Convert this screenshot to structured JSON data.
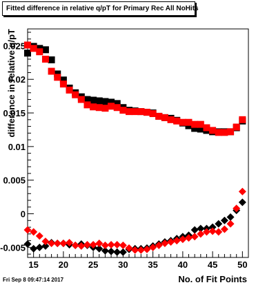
{
  "chart_data": {
    "type": "scatter",
    "title": "Fitted difference in relative q/pT for Primary Rec All NoHits",
    "xlabel": "No. of Fit Points",
    "ylabel": "difference in relative q/pT",
    "xlim": [
      14,
      51
    ],
    "ylim": [
      -0.0065,
      0.0275
    ],
    "x_ticks": [
      15,
      20,
      25,
      30,
      35,
      40,
      45,
      50
    ],
    "y_ticks": [
      {
        "value": -0.005,
        "label": "-0.005"
      },
      {
        "value": 0,
        "label": "0"
      },
      {
        "value": 0.005,
        "label": "0.005"
      },
      {
        "value": 0.01,
        "label": "0.01"
      },
      {
        "value": 0.015,
        "label": "0.015"
      },
      {
        "value": 0.02,
        "label": "0.02"
      },
      {
        "value": 0.025,
        "label": "0.025"
      }
    ],
    "series": [
      {
        "marker": "square",
        "color": "#000000",
        "x": [
          14,
          15,
          16,
          17,
          18,
          19,
          20,
          21,
          22,
          23,
          24,
          25,
          26,
          27,
          28,
          29,
          30,
          31,
          32,
          33,
          34,
          35,
          36,
          37,
          38,
          39,
          40,
          41,
          42,
          43,
          44,
          45,
          46,
          47,
          48,
          49,
          50
        ],
        "y": [
          0.0239,
          0.0249,
          0.0246,
          0.0244,
          0.0229,
          0.0208,
          0.0199,
          0.0187,
          0.018,
          0.0174,
          0.017,
          0.0169,
          0.0168,
          0.0167,
          0.0166,
          0.0164,
          0.0158,
          0.0154,
          0.0153,
          0.0152,
          0.0151,
          0.015,
          0.0145,
          0.0143,
          0.0142,
          0.0139,
          0.0135,
          0.0131,
          0.0127,
          0.0126,
          0.0124,
          0.0122,
          0.0122,
          0.0122,
          0.0122,
          0.0128,
          0.0138
        ]
      },
      {
        "marker": "square",
        "color": "#ff0000",
        "x": [
          14,
          15,
          16,
          17,
          18,
          19,
          20,
          21,
          22,
          23,
          24,
          25,
          26,
          27,
          28,
          29,
          30,
          31,
          32,
          33,
          34,
          35,
          36,
          37,
          38,
          39,
          40,
          41,
          42,
          43,
          44,
          45,
          46,
          47,
          48,
          49,
          50
        ],
        "y": [
          0.0251,
          0.0246,
          0.0241,
          0.023,
          0.0212,
          0.0203,
          0.0193,
          0.0184,
          0.0177,
          0.017,
          0.0162,
          0.0159,
          0.0158,
          0.0157,
          0.016,
          0.0158,
          0.0154,
          0.0152,
          0.0152,
          0.0152,
          0.0151,
          0.0149,
          0.0145,
          0.0143,
          0.014,
          0.0138,
          0.0136,
          0.0136,
          0.0133,
          0.0133,
          0.0128,
          0.0124,
          0.0121,
          0.0121,
          0.0122,
          0.0129,
          0.014
        ]
      },
      {
        "marker": "diamond",
        "color": "#000000",
        "x": [
          14,
          15,
          16,
          17,
          18,
          19,
          20,
          21,
          22,
          23,
          24,
          25,
          26,
          27,
          28,
          29,
          30,
          31,
          32,
          33,
          34,
          35,
          36,
          37,
          38,
          39,
          40,
          41,
          42,
          43,
          44,
          45,
          46,
          47,
          48,
          49,
          50
        ],
        "y": [
          -0.0045,
          -0.0052,
          -0.005,
          -0.0048,
          -0.0043,
          -0.0044,
          -0.0044,
          -0.0046,
          -0.0047,
          -0.0045,
          -0.0047,
          -0.005,
          -0.0052,
          -0.0055,
          -0.0056,
          -0.0057,
          -0.0057,
          -0.0053,
          -0.0052,
          -0.0052,
          -0.0051,
          -0.0048,
          -0.0045,
          -0.0042,
          -0.004,
          -0.0037,
          -0.0034,
          -0.0032,
          -0.0024,
          -0.0022,
          -0.0022,
          -0.002,
          -0.0015,
          -0.001,
          -0.0005,
          0.0005,
          0.0017
        ]
      },
      {
        "marker": "diamond",
        "color": "#ff0000",
        "x": [
          14,
          15,
          16,
          17,
          18,
          19,
          20,
          21,
          22,
          23,
          24,
          25,
          26,
          27,
          28,
          29,
          30,
          31,
          32,
          33,
          34,
          35,
          36,
          37,
          38,
          39,
          40,
          41,
          42,
          43,
          44,
          45,
          46,
          47,
          48,
          49,
          50
        ],
        "y": [
          -0.0024,
          -0.0027,
          -0.0033,
          -0.0041,
          -0.0044,
          -0.0044,
          -0.0044,
          -0.0043,
          -0.0047,
          -0.0048,
          -0.0046,
          -0.0046,
          -0.0044,
          -0.0047,
          -0.0046,
          -0.0046,
          -0.0047,
          -0.0051,
          -0.0054,
          -0.0054,
          -0.0053,
          -0.005,
          -0.0047,
          -0.0044,
          -0.0042,
          -0.004,
          -0.0038,
          -0.0036,
          -0.0034,
          -0.003,
          -0.0027,
          -0.0026,
          -0.0027,
          -0.0023,
          -0.0015,
          0.0008,
          0.0033
        ]
      }
    ]
  },
  "footer": {
    "timestamp": "Fri Sep  8 09:47:14 2017"
  }
}
